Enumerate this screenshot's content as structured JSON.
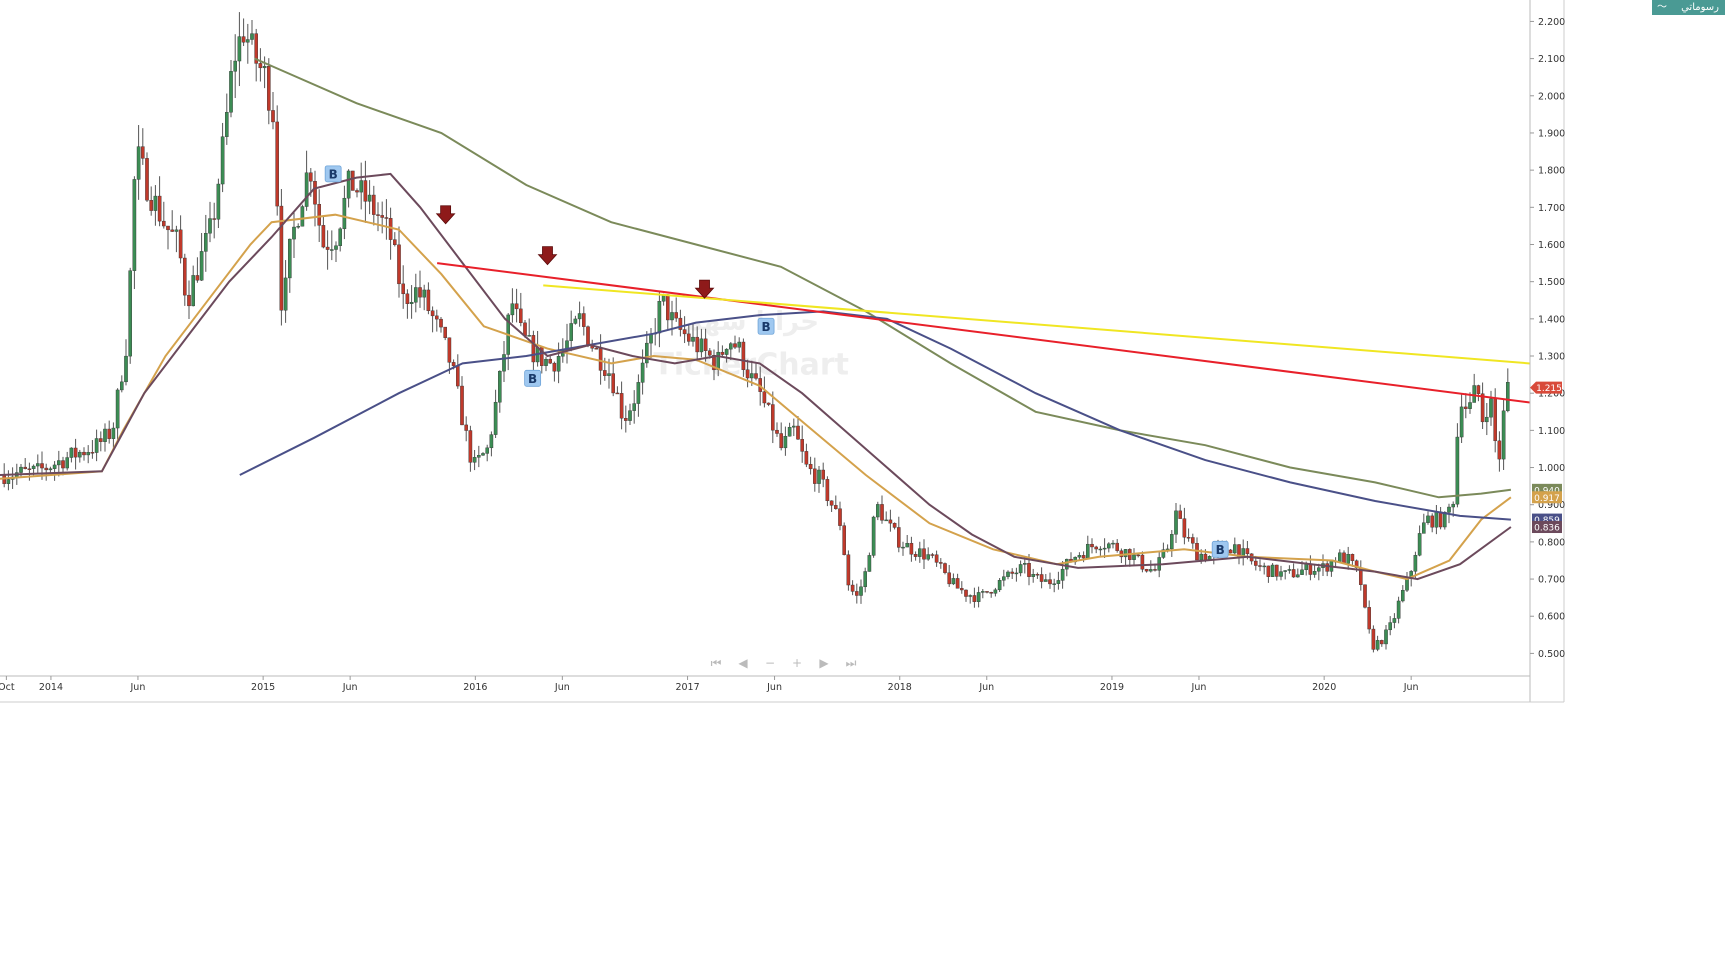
{
  "brand": {
    "label": "رسوماتي",
    "icon": "line-chart-icon",
    "color": "#4a9a94"
  },
  "watermark": {
    "arabic": "حرايا سهم",
    "latin": "TickerChart"
  },
  "nav_controls": [
    {
      "name": "first-page-icon",
      "glyph": "⏮"
    },
    {
      "name": "previous-icon",
      "glyph": "◀"
    },
    {
      "name": "zoom-out-icon",
      "glyph": "−"
    },
    {
      "name": "zoom-in-icon",
      "glyph": "+"
    },
    {
      "name": "next-icon",
      "glyph": "▶"
    },
    {
      "name": "last-page-icon",
      "glyph": "⏭"
    }
  ],
  "chart_data": {
    "type": "candlestick",
    "title": "",
    "xlabel": "",
    "ylabel": "",
    "ylim": [
      0.45,
      2.22
    ],
    "yticks": [
      "0.500",
      "0.600",
      "0.700",
      "0.800",
      "0.900",
      "1.000",
      "1.100",
      "1.200",
      "1.300",
      "1.400",
      "1.500",
      "1.600",
      "1.700",
      "1.800",
      "1.900",
      "2.000",
      "2.100",
      "2.200"
    ],
    "xlim": [
      2013.72,
      2020.93
    ],
    "xticks": [
      {
        "label": "Oct",
        "x": 2013.75
      },
      {
        "label": "2014",
        "x": 2013.96
      },
      {
        "label": "Jun",
        "x": 2014.37
      },
      {
        "label": "2015",
        "x": 2014.96
      },
      {
        "label": "Jun",
        "x": 2015.37
      },
      {
        "label": "2016",
        "x": 2015.96
      },
      {
        "label": "Jun",
        "x": 2016.37
      },
      {
        "label": "2017",
        "x": 2016.96
      },
      {
        "label": "Jun",
        "x": 2017.37
      },
      {
        "label": "2018",
        "x": 2017.96
      },
      {
        "label": "Jun",
        "x": 2018.37
      },
      {
        "label": "2019",
        "x": 2018.96
      },
      {
        "label": "Jun",
        "x": 2019.37
      },
      {
        "label": "2020",
        "x": 2019.96
      },
      {
        "label": "Jun",
        "x": 2020.37
      }
    ],
    "grid": false,
    "colors": {
      "up": "#3c8c54",
      "down": "#c0392b",
      "wick": "#555555"
    },
    "price_path": [
      [
        2013.72,
        0.98
      ],
      [
        2013.9,
        0.99
      ],
      [
        2014.05,
        1.03
      ],
      [
        2014.18,
        1.06
      ],
      [
        2014.25,
        1.1
      ],
      [
        2014.32,
        1.35
      ],
      [
        2014.36,
        1.85
      ],
      [
        2014.42,
        1.75
      ],
      [
        2014.5,
        1.65
      ],
      [
        2014.56,
        1.6
      ],
      [
        2014.6,
        1.45
      ],
      [
        2014.66,
        1.55
      ],
      [
        2014.72,
        1.65
      ],
      [
        2014.78,
        1.9
      ],
      [
        2014.82,
        2.1
      ],
      [
        2014.87,
        2.18
      ],
      [
        2014.92,
        2.1
      ],
      [
        2014.97,
        2.05
      ],
      [
        2015.01,
        1.95
      ],
      [
        2015.05,
        1.4
      ],
      [
        2015.09,
        1.6
      ],
      [
        2015.13,
        1.7
      ],
      [
        2015.18,
        1.82
      ],
      [
        2015.24,
        1.6
      ],
      [
        2015.3,
        1.62
      ],
      [
        2015.37,
        1.77
      ],
      [
        2015.43,
        1.73
      ],
      [
        2015.5,
        1.68
      ],
      [
        2015.56,
        1.62
      ],
      [
        2015.62,
        1.45
      ],
      [
        2015.67,
        1.48
      ],
      [
        2015.72,
        1.45
      ],
      [
        2015.8,
        1.35
      ],
      [
        2015.85,
        1.27
      ],
      [
        2015.91,
        1.1
      ],
      [
        2015.95,
        1.0
      ],
      [
        2016.02,
        1.05
      ],
      [
        2016.08,
        1.25
      ],
      [
        2016.13,
        1.45
      ],
      [
        2016.18,
        1.35
      ],
      [
        2016.25,
        1.3
      ],
      [
        2016.32,
        1.28
      ],
      [
        2016.38,
        1.32
      ],
      [
        2016.45,
        1.4
      ],
      [
        2016.52,
        1.32
      ],
      [
        2016.6,
        1.25
      ],
      [
        2016.66,
        1.13
      ],
      [
        2016.72,
        1.2
      ],
      [
        2016.78,
        1.33
      ],
      [
        2016.84,
        1.45
      ],
      [
        2016.9,
        1.38
      ],
      [
        2016.96,
        1.35
      ],
      [
        2017.06,
        1.3
      ],
      [
        2017.1,
        1.28
      ],
      [
        2017.15,
        1.35
      ],
      [
        2017.2,
        1.32
      ],
      [
        2017.25,
        1.25
      ],
      [
        2017.3,
        1.2
      ],
      [
        2017.35,
        1.13
      ],
      [
        2017.4,
        1.05
      ],
      [
        2017.46,
        1.1
      ],
      [
        2017.52,
        1.0
      ],
      [
        2017.58,
        0.97
      ],
      [
        2017.64,
        0.9
      ],
      [
        2017.68,
        0.85
      ],
      [
        2017.72,
        0.68
      ],
      [
        2017.76,
        0.65
      ],
      [
        2017.8,
        0.72
      ],
      [
        2017.85,
        0.9
      ],
      [
        2017.9,
        0.85
      ],
      [
        2017.96,
        0.8
      ],
      [
        2018.02,
        0.78
      ],
      [
        2018.1,
        0.76
      ],
      [
        2018.16,
        0.72
      ],
      [
        2018.22,
        0.68
      ],
      [
        2018.28,
        0.66
      ],
      [
        2018.34,
        0.65
      ],
      [
        2018.4,
        0.68
      ],
      [
        2018.48,
        0.71
      ],
      [
        2018.54,
        0.73
      ],
      [
        2018.6,
        0.7
      ],
      [
        2018.66,
        0.69
      ],
      [
        2018.72,
        0.72
      ],
      [
        2018.78,
        0.76
      ],
      [
        2018.84,
        0.78
      ],
      [
        2018.9,
        0.8
      ],
      [
        2018.96,
        0.79
      ],
      [
        2019.04,
        0.77
      ],
      [
        2019.1,
        0.74
      ],
      [
        2019.16,
        0.72
      ],
      [
        2019.22,
        0.78
      ],
      [
        2019.26,
        0.88
      ],
      [
        2019.3,
        0.82
      ],
      [
        2019.36,
        0.77
      ],
      [
        2019.42,
        0.76
      ],
      [
        2019.48,
        0.78
      ],
      [
        2019.54,
        0.79
      ],
      [
        2019.6,
        0.75
      ],
      [
        2019.66,
        0.73
      ],
      [
        2019.72,
        0.72
      ],
      [
        2019.78,
        0.71
      ],
      [
        2019.84,
        0.72
      ],
      [
        2019.9,
        0.73
      ],
      [
        2019.96,
        0.73
      ],
      [
        2020.02,
        0.76
      ],
      [
        2020.08,
        0.75
      ],
      [
        2020.13,
        0.7
      ],
      [
        2020.16,
        0.58
      ],
      [
        2020.19,
        0.52
      ],
      [
        2020.24,
        0.54
      ],
      [
        2020.28,
        0.58
      ],
      [
        2020.32,
        0.65
      ],
      [
        2020.36,
        0.7
      ],
      [
        2020.4,
        0.8
      ],
      [
        2020.44,
        0.86
      ],
      [
        2020.48,
        0.86
      ],
      [
        2020.53,
        0.86
      ],
      [
        2020.57,
        0.92
      ],
      [
        2020.6,
        1.2
      ],
      [
        2020.64,
        1.15
      ],
      [
        2020.68,
        1.22
      ],
      [
        2020.71,
        1.12
      ],
      [
        2020.74,
        1.2
      ],
      [
        2020.78,
        1.0
      ],
      [
        2020.82,
        1.22
      ],
      [
        2020.84,
        1.21
      ]
    ],
    "moving_averages": [
      {
        "label": "0.940",
        "color": "#7b8a5a",
        "points": [
          [
            2014.92,
            2.1
          ],
          [
            2015.0,
            2.08
          ],
          [
            2015.4,
            1.98
          ],
          [
            2015.8,
            1.9
          ],
          [
            2016.2,
            1.76
          ],
          [
            2016.6,
            1.66
          ],
          [
            2017.0,
            1.6
          ],
          [
            2017.4,
            1.54
          ],
          [
            2017.8,
            1.42
          ],
          [
            2018.2,
            1.28
          ],
          [
            2018.6,
            1.15
          ],
          [
            2019.0,
            1.1
          ],
          [
            2019.4,
            1.06
          ],
          [
            2019.8,
            1.0
          ],
          [
            2020.2,
            0.96
          ],
          [
            2020.5,
            0.92
          ],
          [
            2020.7,
            0.93
          ],
          [
            2020.84,
            0.94
          ]
        ]
      },
      {
        "label": "0.917",
        "color": "#d4a24c",
        "points": [
          [
            2013.72,
            0.97
          ],
          [
            2014.2,
            0.99
          ],
          [
            2014.3,
            1.1
          ],
          [
            2014.5,
            1.3
          ],
          [
            2014.7,
            1.45
          ],
          [
            2014.9,
            1.6
          ],
          [
            2015.0,
            1.66
          ],
          [
            2015.3,
            1.68
          ],
          [
            2015.6,
            1.64
          ],
          [
            2015.8,
            1.52
          ],
          [
            2016.0,
            1.38
          ],
          [
            2016.3,
            1.32
          ],
          [
            2016.6,
            1.28
          ],
          [
            2016.8,
            1.3
          ],
          [
            2017.0,
            1.29
          ],
          [
            2017.3,
            1.22
          ],
          [
            2017.55,
            1.1
          ],
          [
            2017.8,
            0.98
          ],
          [
            2018.1,
            0.85
          ],
          [
            2018.4,
            0.78
          ],
          [
            2018.7,
            0.74
          ],
          [
            2018.9,
            0.76
          ],
          [
            2019.3,
            0.78
          ],
          [
            2019.6,
            0.76
          ],
          [
            2020.0,
            0.75
          ],
          [
            2020.2,
            0.72
          ],
          [
            2020.35,
            0.7
          ],
          [
            2020.55,
            0.75
          ],
          [
            2020.7,
            0.86
          ],
          [
            2020.84,
            0.92
          ]
        ]
      },
      {
        "label": "0.859",
        "color": "#4a5088",
        "points": [
          [
            2014.85,
            0.98
          ],
          [
            2015.2,
            1.08
          ],
          [
            2015.6,
            1.2
          ],
          [
            2015.9,
            1.28
          ],
          [
            2016.2,
            1.3
          ],
          [
            2016.5,
            1.33
          ],
          [
            2016.8,
            1.36
          ],
          [
            2017.0,
            1.39
          ],
          [
            2017.3,
            1.41
          ],
          [
            2017.6,
            1.42
          ],
          [
            2017.9,
            1.4
          ],
          [
            2018.2,
            1.32
          ],
          [
            2018.6,
            1.2
          ],
          [
            2019.0,
            1.1
          ],
          [
            2019.4,
            1.02
          ],
          [
            2019.8,
            0.96
          ],
          [
            2020.2,
            0.91
          ],
          [
            2020.6,
            0.87
          ],
          [
            2020.84,
            0.86
          ]
        ]
      },
      {
        "label": "0.836",
        "color": "#6c4a5c",
        "points": [
          [
            2013.72,
            0.98
          ],
          [
            2014.2,
            0.99
          ],
          [
            2014.4,
            1.2
          ],
          [
            2014.6,
            1.35
          ],
          [
            2014.8,
            1.5
          ],
          [
            2015.0,
            1.62
          ],
          [
            2015.2,
            1.75
          ],
          [
            2015.4,
            1.78
          ],
          [
            2015.56,
            1.79
          ],
          [
            2015.7,
            1.7
          ],
          [
            2015.9,
            1.55
          ],
          [
            2016.1,
            1.4
          ],
          [
            2016.3,
            1.3
          ],
          [
            2016.5,
            1.33
          ],
          [
            2016.7,
            1.3
          ],
          [
            2016.9,
            1.28
          ],
          [
            2017.1,
            1.3
          ],
          [
            2017.3,
            1.28
          ],
          [
            2017.5,
            1.2
          ],
          [
            2017.7,
            1.1
          ],
          [
            2017.9,
            1.0
          ],
          [
            2018.1,
            0.9
          ],
          [
            2018.3,
            0.82
          ],
          [
            2018.5,
            0.76
          ],
          [
            2018.8,
            0.73
          ],
          [
            2019.2,
            0.74
          ],
          [
            2019.6,
            0.76
          ],
          [
            2019.9,
            0.74
          ],
          [
            2020.2,
            0.72
          ],
          [
            2020.4,
            0.7
          ],
          [
            2020.6,
            0.74
          ],
          [
            2020.84,
            0.84
          ]
        ]
      }
    ],
    "trendlines": [
      {
        "name": "red-trendline",
        "color": "#e8202a",
        "from": [
          2015.78,
          1.55
        ],
        "to": [
          2020.93,
          1.175
        ]
      },
      {
        "name": "yellow-trendline",
        "color": "#f0e622",
        "from": [
          2016.28,
          1.49
        ],
        "to": [
          2020.93,
          1.28
        ]
      }
    ],
    "signals": [
      {
        "type": "sell",
        "x": 2015.82,
        "y": 1.68
      },
      {
        "type": "sell",
        "x": 2016.3,
        "y": 1.57
      },
      {
        "type": "sell",
        "x": 2017.04,
        "y": 1.48
      },
      {
        "type": "buy",
        "label": "B",
        "x": 2015.29,
        "y": 1.79
      },
      {
        "type": "buy",
        "label": "B",
        "x": 2016.23,
        "y": 1.24
      },
      {
        "type": "buy",
        "label": "B",
        "x": 2017.33,
        "y": 1.38
      },
      {
        "type": "buy",
        "label": "B",
        "x": 2019.47,
        "y": 0.78
      }
    ],
    "last_price": {
      "label": "1.215",
      "value": 1.215,
      "color": "#d84a3a"
    }
  }
}
